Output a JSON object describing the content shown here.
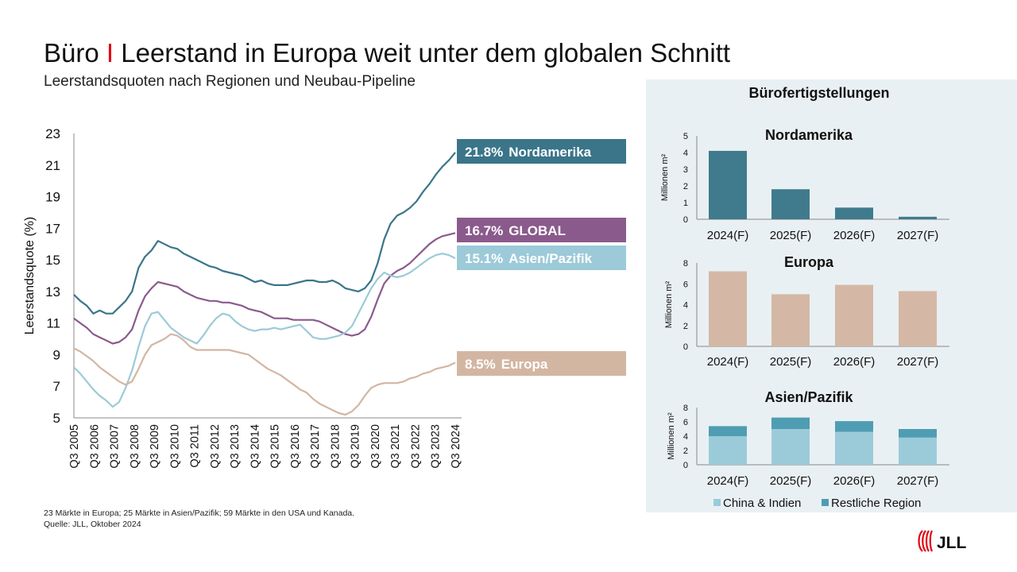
{
  "header": {
    "title_left": "Büro",
    "title_sep": "I",
    "title_right": "Leerstand in Europa weit unter dem globalen Schnitt",
    "subtitle": "Leerstandsquoten nach Regionen und Neubau-Pipeline"
  },
  "footnote": {
    "line1": "23 Märkte in Europa; 25 Märkte in Asien/Pazifik; 59 Märkte in den USA und Kanada.",
    "line2": "Quelle: JLL, Oktober 2024"
  },
  "logo": {
    "text": "JLL",
    "color": "#e30613"
  },
  "colors": {
    "nordamerika": "#3a7589",
    "global": "#8b5a8c",
    "asien": "#9ccad8",
    "europa": "#d3b6a2",
    "bar_north": "#3f7b8c",
    "bar_europe": "#d4b8a5",
    "bar_china": "#9bcbd9",
    "bar_rest": "#4f9db3",
    "panel": "#e9f0f3"
  },
  "chart_data": [
    {
      "type": "line",
      "title": "",
      "ylabel": "Leerstandsquote (%)",
      "ylim": [
        5,
        23
      ],
      "yticks": [
        "5",
        "7",
        "9",
        "11",
        "13",
        "15",
        "17",
        "19",
        "21",
        "23"
      ],
      "xticks": [
        "Q3 2005",
        "Q3 2006",
        "Q3 2007",
        "Q3 2008",
        "Q3 2009",
        "Q3 2010",
        "Q3 2011",
        "Q3 2012",
        "Q3 2013",
        "Q3 2014",
        "Q3 2015",
        "Q3 2016",
        "Q3 2017",
        "Q3 2018",
        "Q3 2019",
        "Q3 2020",
        "Q3 2021",
        "Q3 2022",
        "Q3 2023",
        "Q3 2024"
      ],
      "grid": false,
      "series": [
        {
          "key": "nordamerika",
          "label_value": "21.8%",
          "label_name": "Nordamerika",
          "values": [
            12.8,
            12.4,
            12.1,
            11.6,
            11.8,
            11.6,
            11.6,
            12.0,
            12.4,
            13.0,
            14.5,
            15.2,
            15.6,
            16.2,
            16.0,
            15.8,
            15.7,
            15.4,
            15.2,
            15.0,
            14.8,
            14.6,
            14.5,
            14.3,
            14.2,
            14.1,
            14.0,
            13.8,
            13.6,
            13.7,
            13.5,
            13.4,
            13.4,
            13.4,
            13.5,
            13.6,
            13.7,
            13.7,
            13.6,
            13.6,
            13.7,
            13.5,
            13.2,
            13.1,
            13.0,
            13.2,
            13.7,
            14.8,
            16.3,
            17.3,
            17.8,
            18.0,
            18.3,
            18.7,
            19.3,
            19.8,
            20.4,
            20.9,
            21.3,
            21.8
          ]
        },
        {
          "key": "global",
          "label_value": "16.7%",
          "label_name": "GLOBAL",
          "values": [
            11.3,
            11.0,
            10.7,
            10.3,
            10.1,
            9.9,
            9.7,
            9.8,
            10.1,
            10.6,
            11.8,
            12.7,
            13.2,
            13.6,
            13.5,
            13.4,
            13.3,
            13.0,
            12.8,
            12.6,
            12.5,
            12.4,
            12.4,
            12.3,
            12.3,
            12.2,
            12.1,
            11.9,
            11.8,
            11.7,
            11.5,
            11.3,
            11.3,
            11.3,
            11.2,
            11.2,
            11.2,
            11.2,
            11.1,
            10.9,
            10.7,
            10.5,
            10.3,
            10.2,
            10.3,
            10.6,
            11.4,
            12.5,
            13.5,
            14.0,
            14.3,
            14.5,
            14.8,
            15.2,
            15.6,
            16.0,
            16.3,
            16.5,
            16.6,
            16.7
          ]
        },
        {
          "key": "asien",
          "label_value": "15.1%",
          "label_name": "Asien/Pazifik",
          "values": [
            8.2,
            7.8,
            7.3,
            6.8,
            6.4,
            6.1,
            5.7,
            6.0,
            6.9,
            8.0,
            9.5,
            10.8,
            11.6,
            11.7,
            11.2,
            10.7,
            10.4,
            10.1,
            9.9,
            9.7,
            10.2,
            10.8,
            11.3,
            11.6,
            11.5,
            11.1,
            10.8,
            10.6,
            10.5,
            10.6,
            10.6,
            10.7,
            10.6,
            10.7,
            10.8,
            10.9,
            10.5,
            10.1,
            10.0,
            10.0,
            10.1,
            10.2,
            10.4,
            10.8,
            11.6,
            12.4,
            13.2,
            13.8,
            14.2,
            14.0,
            13.9,
            14.0,
            14.2,
            14.5,
            14.8,
            15.1,
            15.3,
            15.4,
            15.3,
            15.1
          ]
        },
        {
          "key": "europa",
          "label_value": "8.5%",
          "label_name": "Europa",
          "values": [
            9.4,
            9.2,
            8.9,
            8.6,
            8.2,
            7.9,
            7.6,
            7.3,
            7.1,
            7.3,
            8.1,
            9.0,
            9.6,
            9.8,
            10.0,
            10.3,
            10.2,
            9.9,
            9.5,
            9.3,
            9.3,
            9.3,
            9.3,
            9.3,
            9.3,
            9.2,
            9.1,
            9.0,
            8.7,
            8.4,
            8.1,
            7.9,
            7.7,
            7.4,
            7.1,
            6.8,
            6.6,
            6.2,
            5.9,
            5.7,
            5.5,
            5.3,
            5.2,
            5.4,
            5.8,
            6.4,
            6.9,
            7.1,
            7.2,
            7.2,
            7.2,
            7.3,
            7.5,
            7.6,
            7.8,
            7.9,
            8.1,
            8.2,
            8.3,
            8.5
          ]
        }
      ]
    },
    {
      "type": "bar",
      "title": "Nordamerika",
      "ylabel": "Millionen m²",
      "ylim": [
        0,
        5
      ],
      "yticks": [
        "0",
        "1",
        "2",
        "3",
        "4",
        "5"
      ],
      "categories": [
        "2024(F)",
        "2025(F)",
        "2026(F)",
        "2027(F)"
      ],
      "values": [
        4.1,
        1.8,
        0.7,
        0.15
      ]
    },
    {
      "type": "bar",
      "title": "Europa",
      "ylabel": "Millionen m²",
      "ylim": [
        0,
        8
      ],
      "yticks": [
        "0",
        "2",
        "4",
        "6",
        "8"
      ],
      "categories": [
        "2024(F)",
        "2025(F)",
        "2026(F)",
        "2027(F)"
      ],
      "values": [
        7.2,
        5.0,
        5.9,
        5.3
      ]
    },
    {
      "type": "bar",
      "stacked": true,
      "title": "Asien/Pazifik",
      "ylabel": "Millionen m²",
      "ylim": [
        0,
        8
      ],
      "yticks": [
        "0",
        "2",
        "4",
        "6",
        "8"
      ],
      "categories": [
        "2024(F)",
        "2025(F)",
        "2026(F)",
        "2027(F)"
      ],
      "series": [
        {
          "name": "China & Indien",
          "values": [
            4.0,
            5.0,
            4.6,
            3.8
          ]
        },
        {
          "name": "Restliche Region",
          "values": [
            1.4,
            1.6,
            1.5,
            1.2
          ]
        }
      ],
      "legend": "bottom"
    }
  ],
  "panel": {
    "title": "Bürofertigstellungen"
  }
}
